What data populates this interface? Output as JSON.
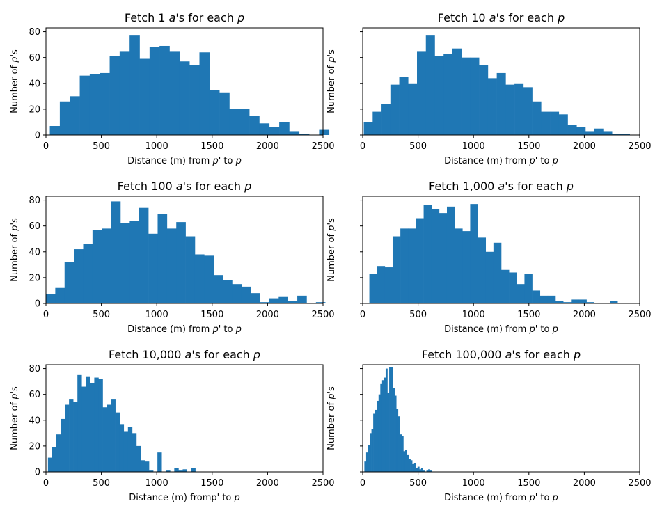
{
  "figure": {
    "bar_color": "#1f77b4",
    "axis_color": "#000000",
    "background": "#ffffff"
  },
  "chart_data": [
    {
      "type": "bar",
      "title": "Fetch 1 a's for each p",
      "xlabel": "Distance (m) from p' to p",
      "ylabel": "Number of p's",
      "xlim": [
        0,
        2500
      ],
      "ylim": [
        0,
        83
      ],
      "xticks": [
        0,
        500,
        1000,
        1500,
        2000,
        2500
      ],
      "yticks": [
        0,
        20,
        40,
        60,
        80
      ],
      "show_ytick_labels": true,
      "bins": [
        [
          35,
          7
        ],
        [
          125,
          26
        ],
        [
          215,
          30
        ],
        [
          305,
          46
        ],
        [
          395,
          47
        ],
        [
          485,
          48
        ],
        [
          575,
          61
        ],
        [
          665,
          65
        ],
        [
          755,
          77
        ],
        [
          845,
          59
        ],
        [
          935,
          68
        ],
        [
          1025,
          69
        ],
        [
          1115,
          65
        ],
        [
          1205,
          57
        ],
        [
          1295,
          54
        ],
        [
          1385,
          64
        ],
        [
          1475,
          35
        ],
        [
          1565,
          33
        ],
        [
          1655,
          20
        ],
        [
          1745,
          20
        ],
        [
          1835,
          15
        ],
        [
          1925,
          9
        ],
        [
          2015,
          6
        ],
        [
          2105,
          10
        ],
        [
          2195,
          3
        ],
        [
          2285,
          1
        ],
        [
          2375,
          0
        ],
        [
          2465,
          4
        ]
      ],
      "bin_width": 90
    },
    {
      "type": "bar",
      "title": "Fetch 10 a's for each p",
      "xlabel": "Distance (m) from p' to p",
      "ylabel": "Number of p's",
      "xlim": [
        0,
        2500
      ],
      "ylim": [
        0,
        83
      ],
      "xticks": [
        0,
        500,
        1000,
        1500,
        2000,
        2500
      ],
      "yticks": [
        0,
        20,
        40,
        60,
        80
      ],
      "show_ytick_labels": false,
      "bins": [
        [
          10,
          10
        ],
        [
          90,
          18
        ],
        [
          170,
          24
        ],
        [
          250,
          39
        ],
        [
          330,
          45
        ],
        [
          410,
          40
        ],
        [
          490,
          65
        ],
        [
          570,
          77
        ],
        [
          650,
          61
        ],
        [
          730,
          63
        ],
        [
          810,
          67
        ],
        [
          890,
          60
        ],
        [
          970,
          60
        ],
        [
          1050,
          54
        ],
        [
          1130,
          44
        ],
        [
          1210,
          48
        ],
        [
          1290,
          39
        ],
        [
          1370,
          40
        ],
        [
          1450,
          37
        ],
        [
          1530,
          26
        ],
        [
          1610,
          18
        ],
        [
          1690,
          18
        ],
        [
          1770,
          16
        ],
        [
          1850,
          8
        ],
        [
          1930,
          6
        ],
        [
          2010,
          3
        ],
        [
          2090,
          5
        ],
        [
          2170,
          3
        ],
        [
          2250,
          1
        ],
        [
          2330,
          1
        ]
      ],
      "bin_width": 80
    },
    {
      "type": "bar",
      "title": "Fetch 100 a's for each p",
      "xlabel": "Distance (m) from p' to p",
      "ylabel": "Number of p's",
      "xlim": [
        0,
        2500
      ],
      "ylim": [
        0,
        83
      ],
      "xticks": [
        0,
        500,
        1000,
        1500,
        2000,
        2500
      ],
      "yticks": [
        0,
        20,
        40,
        60,
        80
      ],
      "show_ytick_labels": true,
      "bins": [
        [
          0,
          7
        ],
        [
          84,
          12
        ],
        [
          168,
          32
        ],
        [
          252,
          42
        ],
        [
          336,
          46
        ],
        [
          420,
          57
        ],
        [
          504,
          58
        ],
        [
          588,
          79
        ],
        [
          672,
          62
        ],
        [
          756,
          64
        ],
        [
          840,
          74
        ],
        [
          924,
          54
        ],
        [
          1008,
          69
        ],
        [
          1092,
          58
        ],
        [
          1176,
          63
        ],
        [
          1260,
          52
        ],
        [
          1344,
          38
        ],
        [
          1428,
          37
        ],
        [
          1512,
          22
        ],
        [
          1596,
          18
        ],
        [
          1680,
          15
        ],
        [
          1764,
          13
        ],
        [
          1848,
          8
        ],
        [
          1932,
          1
        ],
        [
          2016,
          4
        ],
        [
          2100,
          5
        ],
        [
          2184,
          2
        ],
        [
          2268,
          6
        ],
        [
          2352,
          0
        ],
        [
          2436,
          1
        ]
      ],
      "bin_width": 84
    },
    {
      "type": "bar",
      "title": "Fetch 1,000 a's for each p",
      "xlabel": "Distance (m) from p' to p",
      "ylabel": "Number of p's",
      "xlim": [
        0,
        2500
      ],
      "ylim": [
        0,
        83
      ],
      "xticks": [
        0,
        500,
        1000,
        1500,
        2000,
        2500
      ],
      "yticks": [
        0,
        20,
        40,
        60,
        80
      ],
      "show_ytick_labels": false,
      "bins": [
        [
          60,
          23
        ],
        [
          130,
          29
        ],
        [
          200,
          28
        ],
        [
          270,
          52
        ],
        [
          340,
          58
        ],
        [
          410,
          58
        ],
        [
          480,
          66
        ],
        [
          550,
          76
        ],
        [
          620,
          73
        ],
        [
          690,
          70
        ],
        [
          760,
          75
        ],
        [
          830,
          58
        ],
        [
          900,
          56
        ],
        [
          970,
          77
        ],
        [
          1040,
          51
        ],
        [
          1110,
          40
        ],
        [
          1180,
          47
        ],
        [
          1250,
          26
        ],
        [
          1320,
          24
        ],
        [
          1390,
          15
        ],
        [
          1460,
          23
        ],
        [
          1530,
          10
        ],
        [
          1600,
          6
        ],
        [
          1670,
          6
        ],
        [
          1740,
          2
        ],
        [
          1810,
          1
        ],
        [
          1880,
          3
        ],
        [
          1950,
          3
        ],
        [
          2020,
          1
        ],
        [
          2090,
          0
        ],
        [
          2160,
          0
        ],
        [
          2230,
          2
        ]
      ],
      "bin_width": 70
    },
    {
      "type": "bar",
      "title": "Fetch 10,000 a's for each p",
      "xlabel": "Distance (m) fromp' to p",
      "ylabel": "Number of p's",
      "xlim": [
        0,
        2500
      ],
      "ylim": [
        0,
        83
      ],
      "xticks": [
        0,
        500,
        1000,
        1500,
        2000,
        2500
      ],
      "yticks": [
        0,
        20,
        40,
        60,
        80
      ],
      "show_ytick_labels": true,
      "bins": [
        [
          18,
          11
        ],
        [
          56,
          19
        ],
        [
          94,
          29
        ],
        [
          132,
          41
        ],
        [
          170,
          52
        ],
        [
          208,
          56
        ],
        [
          246,
          54
        ],
        [
          284,
          75
        ],
        [
          322,
          66
        ],
        [
          360,
          74
        ],
        [
          398,
          69
        ],
        [
          436,
          73
        ],
        [
          474,
          72
        ],
        [
          512,
          50
        ],
        [
          550,
          52
        ],
        [
          588,
          56
        ],
        [
          626,
          46
        ],
        [
          664,
          37
        ],
        [
          702,
          31
        ],
        [
          740,
          35
        ],
        [
          778,
          30
        ],
        [
          816,
          20
        ],
        [
          854,
          9
        ],
        [
          892,
          8
        ],
        [
          930,
          1
        ],
        [
          968,
          0
        ],
        [
          1006,
          15
        ],
        [
          1044,
          0
        ],
        [
          1082,
          1
        ],
        [
          1120,
          0
        ],
        [
          1158,
          3
        ],
        [
          1196,
          1
        ],
        [
          1234,
          2
        ],
        [
          1272,
          0
        ],
        [
          1310,
          3
        ]
      ],
      "bin_width": 38
    },
    {
      "type": "bar",
      "title": "Fetch 100,000 a's for each p",
      "xlabel": "Distance (m) from p' to p",
      "ylabel": "Number of p's",
      "xlim": [
        0,
        2500
      ],
      "ylim": [
        0,
        83
      ],
      "xticks": [
        0,
        500,
        1000,
        1500,
        2000,
        2500
      ],
      "yticks": [
        0,
        20,
        40,
        60,
        80
      ],
      "show_ytick_labels": false,
      "bins": [
        [
          15,
          8
        ],
        [
          31,
          15
        ],
        [
          47,
          21
        ],
        [
          63,
          30
        ],
        [
          79,
          33
        ],
        [
          95,
          45
        ],
        [
          111,
          48
        ],
        [
          127,
          55
        ],
        [
          143,
          60
        ],
        [
          159,
          68
        ],
        [
          175,
          71
        ],
        [
          191,
          73
        ],
        [
          207,
          80
        ],
        [
          223,
          61
        ],
        [
          239,
          81
        ],
        [
          255,
          81
        ],
        [
          271,
          65
        ],
        [
          287,
          59
        ],
        [
          303,
          49
        ],
        [
          319,
          43
        ],
        [
          335,
          29
        ],
        [
          351,
          28
        ],
        [
          367,
          16
        ],
        [
          383,
          17
        ],
        [
          399,
          13
        ],
        [
          415,
          10
        ],
        [
          431,
          9
        ],
        [
          447,
          6
        ],
        [
          463,
          7
        ],
        [
          479,
          3
        ],
        [
          495,
          4
        ],
        [
          511,
          2
        ],
        [
          527,
          3
        ],
        [
          543,
          1
        ],
        [
          559,
          0
        ],
        [
          575,
          1
        ],
        [
          591,
          2
        ],
        [
          607,
          1
        ]
      ],
      "bin_width": 16
    }
  ]
}
